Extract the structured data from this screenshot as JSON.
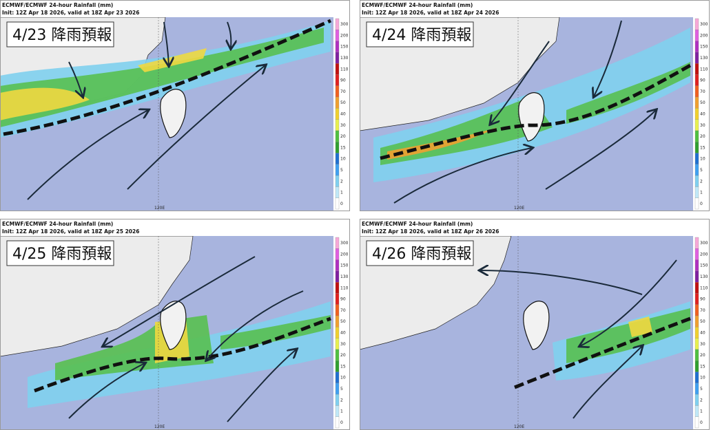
{
  "panels": [
    {
      "title": "ECMWF/ECMWF 24-hour Rainfall (mm)",
      "init": "Init: 12Z Apr 18 2026, valid at 18Z Apr 23 2026",
      "label": "4/23 降雨預報",
      "lon_label": "120E"
    },
    {
      "title": "ECMWF/ECMWF 24-hour Rainfall (mm)",
      "init": "Init: 12Z Apr 18 2026, valid at 18Z Apr 24 2026",
      "label": "4/24 降雨預報",
      "lon_label": "120E"
    },
    {
      "title": "ECMWF/ECMWF 24-hour Rainfall (mm)",
      "init": "Init: 12Z Apr 18 2026, valid at 18Z Apr 25 2026",
      "label": "4/25 降雨預報",
      "lon_label": "120E"
    },
    {
      "title": "ECMWF/ECMWF 24-hour Rainfall (mm)",
      "init": "Init: 12Z Apr 18 2026, valid at 18Z Apr 26 2026",
      "label": "4/26 降雨預報",
      "lon_label": "120E"
    }
  ],
  "colorbar": {
    "labels": [
      300,
      200,
      150,
      130,
      110,
      90,
      70,
      50,
      40,
      30,
      20,
      15,
      10,
      5,
      2,
      1,
      0
    ]
  }
}
